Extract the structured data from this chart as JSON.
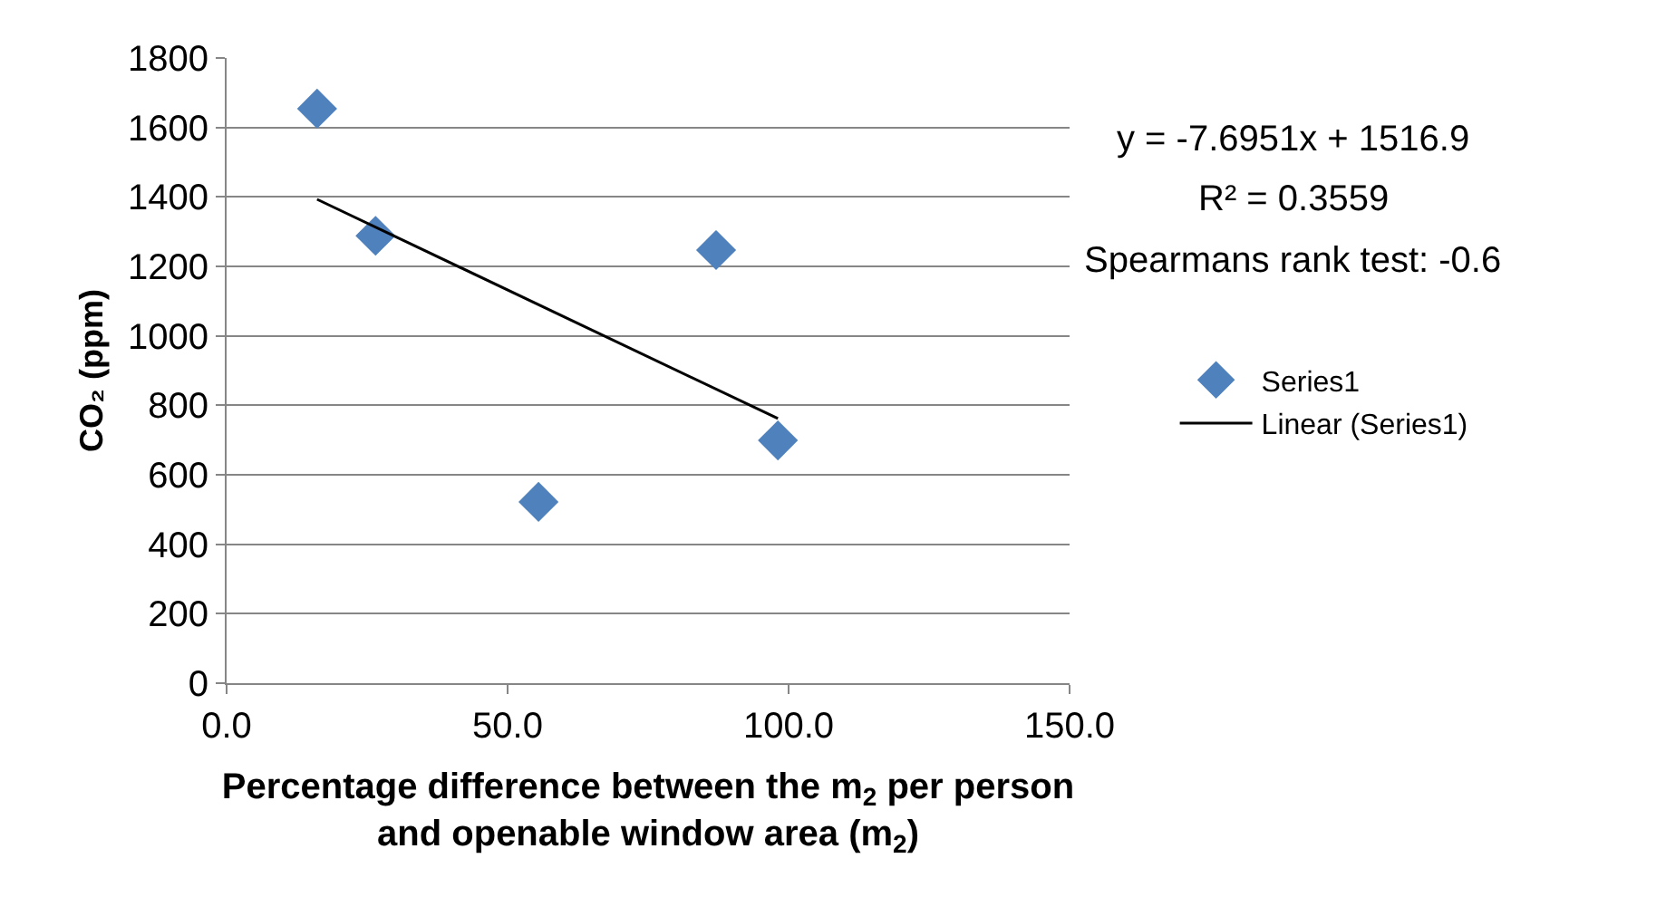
{
  "chart_data": {
    "type": "scatter",
    "xlabel": "Percentage difference between the m$_{2}$ per person\nand openable window area (m$_{2}$)",
    "ylabel": "CO₂ (ppm)",
    "annotations": [
      "y = -7.6951x + 1516.9",
      "R² = 0.3559",
      "Spearmans rank test: -0.6"
    ],
    "series": [
      {
        "name": "Series1",
        "color": "#4f81bd",
        "marker": "diamond",
        "x": [
          16.1,
          26.5,
          55.5,
          87.1,
          98.1
        ],
        "values": [
          1654,
          1288,
          522,
          1247,
          699
        ]
      },
      {
        "name": "Linear (Series1)",
        "type": "line",
        "color": "#000000",
        "marker": "none",
        "line_style": "solid",
        "x": [
          16.1,
          98.1
        ],
        "values": [
          1393,
          762
        ]
      }
    ],
    "xlim": [
      0,
      150
    ],
    "xticks": [
      {
        "value": 0,
        "label": "0.0"
      },
      {
        "value": 50,
        "label": "50.0"
      },
      {
        "value": 100,
        "label": "100.0"
      },
      {
        "value": 150,
        "label": "150.0"
      }
    ],
    "ylim": [
      0,
      1800
    ],
    "yticks": [
      0,
      200,
      400,
      600,
      800,
      1000,
      1200,
      1400,
      1600,
      1800
    ],
    "grid": "y",
    "legend": "right"
  }
}
